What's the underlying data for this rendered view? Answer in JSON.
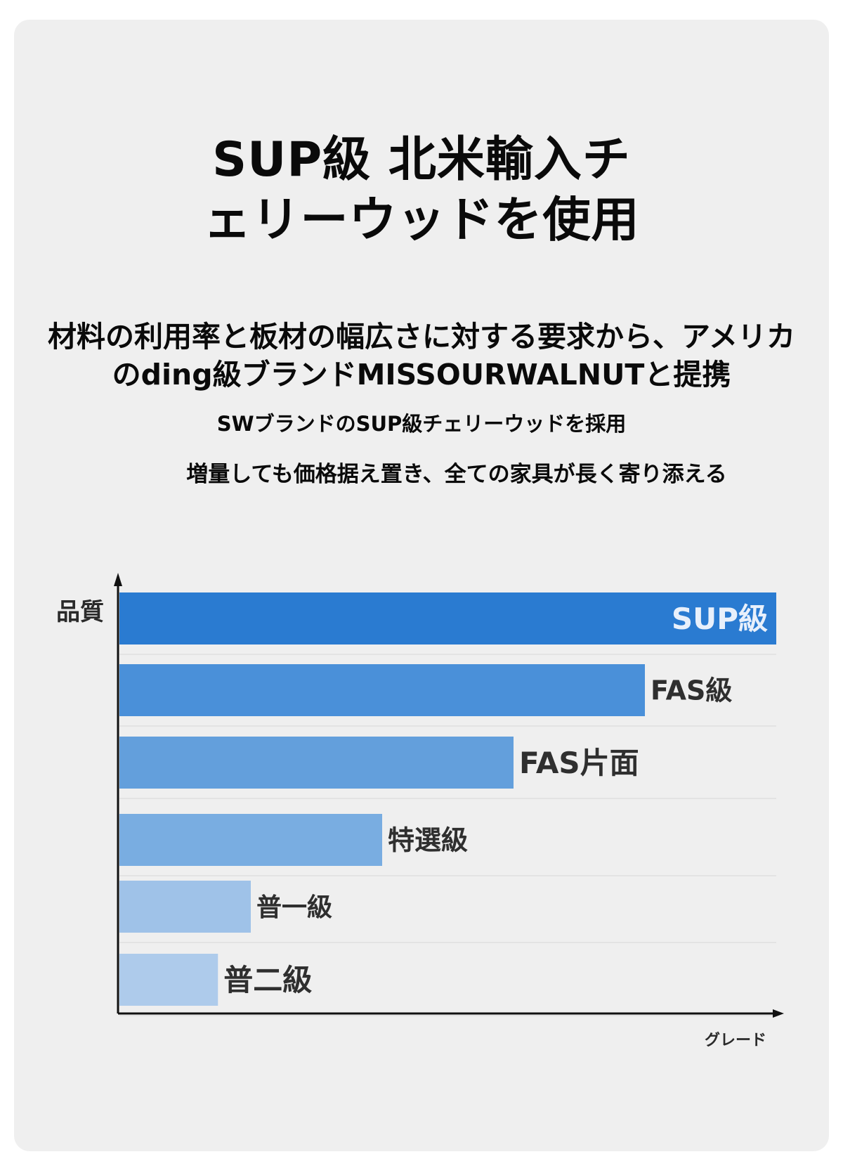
{
  "heading": {
    "title_line1": "SUP級 北米輸入チ",
    "title_line2": "ェリーウッドを使用",
    "description": "材料の利用率と板材の幅広さに対する要求から、アメリカのding級ブランドMISSOURWALNUTと提携",
    "subline1": "SWブランドのSUP級チェリーウッドを採用",
    "subline2": "増量しても価格据え置き、全ての家具が長く寄り添える"
  },
  "chart_data": {
    "type": "bar",
    "orientation": "horizontal",
    "ylabel": "品質",
    "xlabel": "グレード",
    "grid": true,
    "categories": [
      "SUP級",
      "FAS級",
      "FAS片面",
      "特選級",
      "普一級",
      "普二級"
    ],
    "values": [
      100,
      80,
      60,
      40,
      20,
      15
    ],
    "xlim": [
      0,
      100
    ],
    "colors": [
      "#2a7bd1",
      "#4a90d9",
      "#639fdc",
      "#79ade1",
      "#9fc2e8",
      "#aecbeb"
    ],
    "label_colors": [
      "#e8f0fb",
      "#2f2f2f",
      "#2f2f2f",
      "#2f2f2f",
      "#2f2f2f",
      "#2f2f2f"
    ]
  }
}
